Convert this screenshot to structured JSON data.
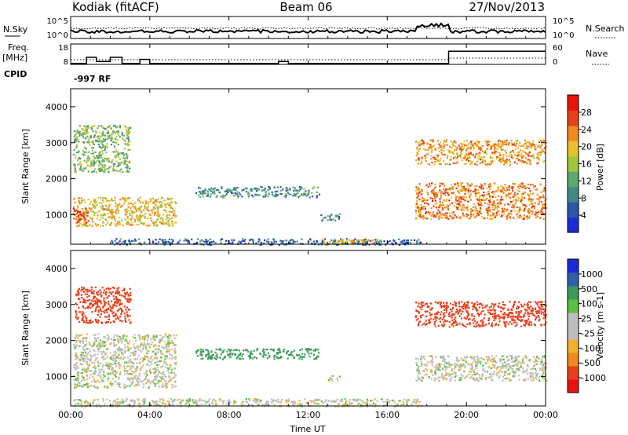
{
  "header": {
    "station": "Kodiak (fitACF)",
    "beam": "Beam 06",
    "date": "27/Nov/2013"
  },
  "noise_panel": {
    "left_label": "N.Sky",
    "right_label": "N.Search",
    "left_ticks": [
      "10^5",
      "10^0"
    ],
    "right_ticks": [
      "10^5",
      "10^0"
    ]
  },
  "freq_panel": {
    "left_label_1": "Freq.",
    "left_label_2": "[MHz]",
    "right_label": "Nave",
    "left_ticks": [
      "18",
      "8"
    ],
    "right_ticks": [
      "60",
      "0"
    ],
    "cpid_label": "CPID",
    "cpid_value": "-997 RF"
  },
  "x_axis": {
    "label": "Time UT",
    "ticks": [
      "00:00",
      "04:00",
      "08:00",
      "12:00",
      "16:00",
      "20:00",
      "00:00"
    ]
  },
  "colors": {
    "power_scale": [
      "#1c2bd8",
      "#2f55a8",
      "#3f8a86",
      "#5da86a",
      "#9fc63c",
      "#e8c22a",
      "#f08a1e",
      "#e8401a",
      "#e8140e"
    ],
    "velocity_scale": [
      "#e8140e",
      "#e8401a",
      "#f08a1e",
      "#f0b030",
      "#bebebe",
      "#bebebe",
      "#58c23c",
      "#3f9a5a",
      "#2f5fa8",
      "#1c2bd8"
    ]
  },
  "chart_data": [
    {
      "type": "heatmap",
      "name": "power",
      "xlabel": "Time UT",
      "ylabel": "Slant Range [km]",
      "xlim": [
        0,
        24
      ],
      "ylim": [
        180,
        4500
      ],
      "yticks": [
        1000,
        2000,
        3000,
        4000
      ],
      "colorbar_label": "Power [dB]",
      "colorbar_ticks": [
        4,
        8,
        12,
        16,
        20,
        24,
        28
      ],
      "colorbar_range": [
        0,
        32
      ],
      "regions": [
        {
          "t0": 0.1,
          "t1": 5.3,
          "r0": 700,
          "r1": 1500,
          "level": 20
        },
        {
          "t0": 0.1,
          "t1": 3.0,
          "r0": 2200,
          "r1": 3500,
          "level": 14
        },
        {
          "t0": 0.1,
          "t1": 0.9,
          "r0": 800,
          "r1": 1200,
          "level": 28
        },
        {
          "t0": 6.3,
          "t1": 12.6,
          "r0": 1500,
          "r1": 1800,
          "level": 10
        },
        {
          "t0": 12.6,
          "t1": 13.6,
          "r0": 850,
          "r1": 1050,
          "level": 9
        },
        {
          "t0": 2.0,
          "t1": 17.7,
          "r0": 180,
          "r1": 350,
          "level": 6
        },
        {
          "t0": 12.5,
          "t1": 15.5,
          "r0": 200,
          "r1": 350,
          "level": 20
        },
        {
          "t0": 17.4,
          "t1": 24.0,
          "r0": 900,
          "r1": 1900,
          "level": 24
        },
        {
          "t0": 17.4,
          "t1": 24.0,
          "r0": 2400,
          "r1": 3100,
          "level": 22
        }
      ]
    },
    {
      "type": "heatmap",
      "name": "velocity",
      "xlabel": "Time UT",
      "ylabel": "Slant Range [km]",
      "xlim": [
        0,
        24
      ],
      "ylim": [
        180,
        4500
      ],
      "yticks": [
        1000,
        2000,
        3000,
        4000
      ],
      "colorbar_label": "Velocity [m s-1]",
      "colorbar_ticks": [
        "1000",
        "500",
        "100",
        "25",
        "-25",
        "-100",
        "-500",
        "-1000"
      ],
      "regions": [
        {
          "t0": 0.1,
          "t1": 5.3,
          "r0": 700,
          "r1": 2200,
          "level": 0
        },
        {
          "t0": 0.2,
          "t1": 3.0,
          "r0": 2500,
          "r1": 3500,
          "level": -200
        },
        {
          "t0": 6.3,
          "t1": 12.6,
          "r0": 1500,
          "r1": 1800,
          "level": 150
        },
        {
          "t0": 13.0,
          "t1": 13.6,
          "r0": 900,
          "r1": 1050,
          "level": 0
        },
        {
          "t0": 0.0,
          "t1": 17.7,
          "r0": 180,
          "r1": 400,
          "level": 0
        },
        {
          "t0": 17.4,
          "t1": 24.0,
          "r0": 900,
          "r1": 1600,
          "level": 0
        },
        {
          "t0": 17.4,
          "t1": 24.0,
          "r0": 2400,
          "r1": 3100,
          "level": -150
        }
      ]
    }
  ]
}
